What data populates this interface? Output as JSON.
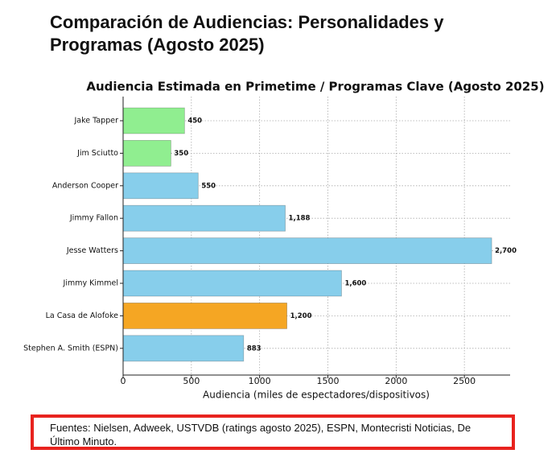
{
  "title": "Comparación de Audiencias: Personalidades y Programas (Agosto 2025)",
  "chart_data": {
    "type": "barh",
    "title": "Audiencia Estimada en Primetime / Programas Clave (Agosto 2025)",
    "x_label": "Audiencia (miles de espectadores/dispositivos)",
    "categories": [
      "Jake Tapper",
      "Jim Sciutto",
      "Anderson Cooper",
      "Jimmy Fallon",
      "Jesse Watters",
      "Jimmy Kimmel",
      "La Casa de Alofoke",
      "Stephen A. Smith (ESPN)"
    ],
    "values": [
      450,
      350,
      550,
      1188,
      2700,
      1600,
      1200,
      883
    ],
    "value_labels": [
      "450",
      "350",
      "550",
      "1,188",
      "2,700",
      "1,600",
      "1,200",
      "883"
    ],
    "colors": [
      "#90ee90",
      "#90ee90",
      "#87ceeb",
      "#87ceeb",
      "#87ceeb",
      "#87ceeb",
      "#f5a623",
      "#87ceeb"
    ],
    "xlim": [
      0,
      2835
    ],
    "xticks": [
      0,
      500,
      1000,
      1500,
      2000,
      2500
    ],
    "grid": true
  },
  "note": "Fuentes: Nielsen, Adweek, USTVDB (ratings agosto 2025), ESPN, Montecristi Noticias, De Último Minuto."
}
